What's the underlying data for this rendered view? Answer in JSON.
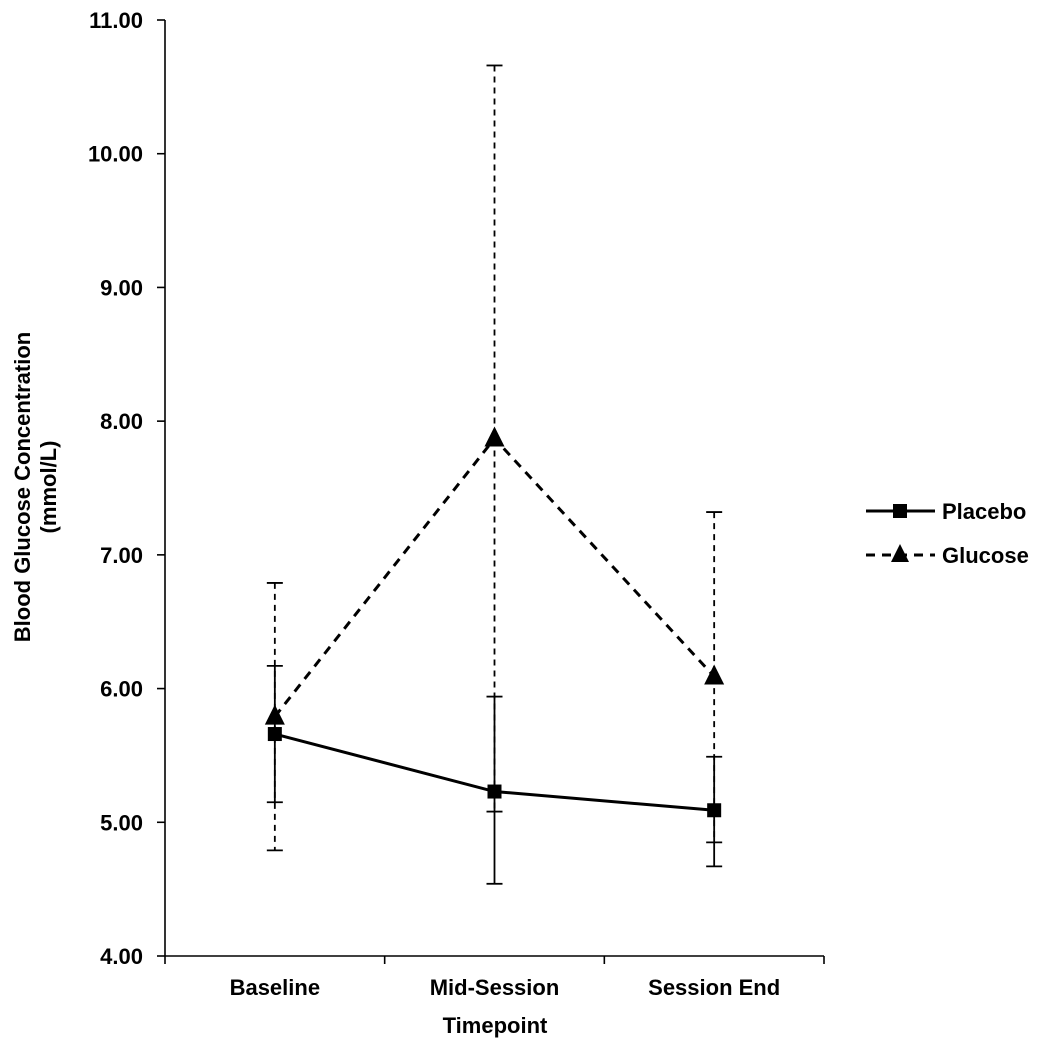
{
  "chart_data": {
    "type": "line",
    "xlabel": "Timepoint",
    "ylabel": [
      "Blood Glucose Concentration",
      "(mmol/L)"
    ],
    "categories": [
      "Baseline",
      "Mid-Session",
      "Session End"
    ],
    "ylim": [
      4.0,
      11.0
    ],
    "yticks": [
      "4.00",
      "5.00",
      "6.00",
      "7.00",
      "8.00",
      "9.00",
      "10.00",
      "11.00"
    ],
    "grid": false,
    "legend_position": "right",
    "series": [
      {
        "name": "Placebo",
        "marker": "square",
        "line_style": "solid",
        "values": [
          5.66,
          5.23,
          5.09
        ],
        "error_upper": [
          6.17,
          5.94,
          5.49
        ],
        "error_lower": [
          5.15,
          4.54,
          4.67
        ]
      },
      {
        "name": "Glucose",
        "marker": "triangle",
        "line_style": "dashed",
        "values": [
          5.79,
          7.87,
          6.09
        ],
        "error_upper": [
          6.79,
          10.66,
          7.32
        ],
        "error_lower": [
          4.79,
          5.08,
          4.85
        ]
      }
    ]
  }
}
